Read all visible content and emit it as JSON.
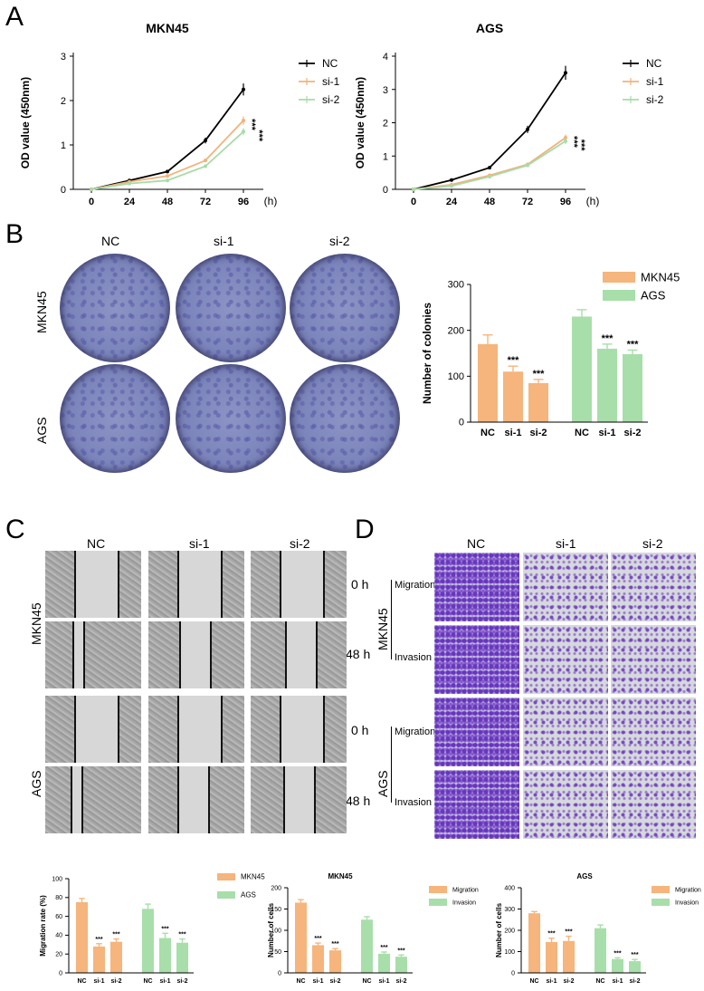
{
  "panels": {
    "A": "A",
    "B": "B",
    "C": "C",
    "D": "D"
  },
  "colors": {
    "nc": "#000000",
    "si1": "#f2b27a",
    "si2": "#a8dba8",
    "mkn45": "#f5b57c",
    "ags": "#a8deaa"
  },
  "panel_b": {
    "columns": [
      "NC",
      "si-1",
      "si-2"
    ],
    "rows": [
      "MKN45",
      "AGS"
    ]
  },
  "panel_c": {
    "columns": [
      "NC",
      "si-1",
      "si-2"
    ],
    "rows": [
      "MKN45",
      "AGS"
    ],
    "times": [
      "0 h",
      "48 h",
      "0 h",
      "48 h"
    ]
  },
  "panel_d": {
    "columns": [
      "NC",
      "si-1",
      "si-2"
    ],
    "rows": [
      "MKN45",
      "AGS"
    ],
    "assays": [
      "Migration",
      "Invasion",
      "Migration",
      "Invasion"
    ]
  },
  "chart_data": [
    {
      "id": "a_mkn45",
      "type": "line",
      "title": "MKN45",
      "xlabel": "(h)",
      "ylabel": "OD value (450nm)",
      "x": [
        0,
        24,
        48,
        72,
        96
      ],
      "ylim": [
        0,
        3
      ],
      "yticks": [
        0,
        1,
        2,
        3
      ],
      "series": [
        {
          "name": "NC",
          "values": [
            0,
            0.2,
            0.4,
            1.1,
            2.25
          ],
          "color": "#000000"
        },
        {
          "name": "si-1",
          "values": [
            0,
            0.17,
            0.3,
            0.65,
            1.55
          ],
          "color": "#f2b27a"
        },
        {
          "name": "si-2",
          "values": [
            0,
            0.13,
            0.2,
            0.52,
            1.3
          ],
          "color": "#a8dba8"
        }
      ],
      "annotations": [
        "***",
        "***"
      ]
    },
    {
      "id": "a_ags",
      "type": "line",
      "title": "AGS",
      "xlabel": "(h)",
      "ylabel": "OD value (450nm)",
      "x": [
        0,
        24,
        48,
        72,
        96
      ],
      "ylim": [
        0,
        4
      ],
      "yticks": [
        0,
        1,
        2,
        3,
        4
      ],
      "series": [
        {
          "name": "NC",
          "values": [
            0,
            0.28,
            0.65,
            1.8,
            3.5
          ],
          "color": "#000000"
        },
        {
          "name": "si-1",
          "values": [
            0,
            0.14,
            0.42,
            0.75,
            1.55
          ],
          "color": "#f2b27a"
        },
        {
          "name": "si-2",
          "values": [
            0,
            0.1,
            0.38,
            0.72,
            1.45
          ],
          "color": "#a8dba8"
        }
      ],
      "annotations": [
        "***",
        "***"
      ]
    },
    {
      "id": "b_colonies",
      "type": "bar",
      "title": "",
      "ylabel": "Number of colonies",
      "ylim": [
        0,
        300
      ],
      "yticks": [
        0,
        100,
        200,
        300
      ],
      "groups": [
        {
          "name": "MKN45",
          "categories": [
            "NC",
            "si-1",
            "si-2"
          ],
          "values": [
            170,
            110,
            85
          ],
          "errors": [
            20,
            12,
            8
          ],
          "stars": [
            "",
            "***",
            "***"
          ]
        },
        {
          "name": "AGS",
          "categories": [
            "NC",
            "si-1",
            "si-2"
          ],
          "values": [
            230,
            160,
            148
          ],
          "errors": [
            15,
            10,
            9
          ],
          "stars": [
            "",
            "***",
            "***"
          ]
        }
      ]
    },
    {
      "id": "c_migration_rate",
      "type": "bar",
      "title": "",
      "ylabel": "Migration rate (%)",
      "ylim": [
        0,
        100
      ],
      "yticks": [
        0,
        20,
        40,
        60,
        80,
        100
      ],
      "groups": [
        {
          "name": "MKN45",
          "categories": [
            "NC",
            "si-1",
            "si-2"
          ],
          "values": [
            75,
            28,
            33
          ],
          "errors": [
            4,
            3,
            3
          ],
          "stars": [
            "",
            "***",
            "***"
          ]
        },
        {
          "name": "AGS",
          "categories": [
            "NC",
            "si-1",
            "si-2"
          ],
          "values": [
            68,
            37,
            32
          ],
          "errors": [
            5,
            5,
            4
          ],
          "stars": [
            "",
            "***",
            "***"
          ]
        }
      ]
    },
    {
      "id": "d_mkn45",
      "type": "bar",
      "title": "MKN45",
      "ylabel": "Number of cells",
      "ylim": [
        0,
        200
      ],
      "yticks": [
        0,
        50,
        100,
        150,
        200
      ],
      "groups": [
        {
          "name": "Migration",
          "categories": [
            "NC",
            "si-1",
            "si-2"
          ],
          "values": [
            165,
            65,
            53
          ],
          "errors": [
            7,
            5,
            4
          ],
          "stars": [
            "",
            "***",
            "***"
          ]
        },
        {
          "name": "Invasion",
          "categories": [
            "NC",
            "si-1",
            "si-2"
          ],
          "values": [
            125,
            45,
            38
          ],
          "errors": [
            7,
            4,
            4
          ],
          "stars": [
            "",
            "***",
            "***"
          ]
        }
      ]
    },
    {
      "id": "d_ags",
      "type": "bar",
      "title": "AGS",
      "ylabel": "Number of cells",
      "ylim": [
        0,
        400
      ],
      "yticks": [
        0,
        100,
        200,
        300,
        400
      ],
      "groups": [
        {
          "name": "Migration",
          "categories": [
            "NC",
            "si-1",
            "si-2"
          ],
          "values": [
            280,
            145,
            150
          ],
          "errors": [
            8,
            18,
            22
          ],
          "stars": [
            "",
            "***",
            "***"
          ]
        },
        {
          "name": "Invasion",
          "categories": [
            "NC",
            "si-1",
            "si-2"
          ],
          "values": [
            210,
            65,
            55
          ],
          "errors": [
            15,
            6,
            8
          ],
          "stars": [
            "",
            "***",
            "***"
          ]
        }
      ]
    }
  ]
}
